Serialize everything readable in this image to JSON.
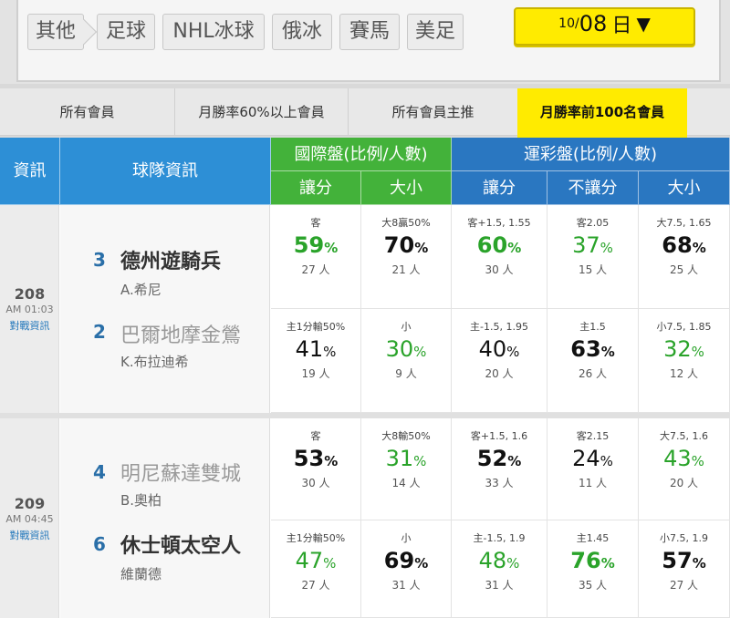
{
  "categories": [
    "其他",
    "足球",
    "NHL冰球",
    "俄冰",
    "賽馬",
    "美足"
  ],
  "date": {
    "month": "10",
    "slash": "/",
    "day": "08",
    "weekday": "日",
    "arrow": "▼"
  },
  "filters": [
    "所有會員",
    "月勝率60%以上會員",
    "所有會員主推",
    "月勝率前100名會員"
  ],
  "header": {
    "info": "資訊",
    "team_info": "球隊資訊",
    "intl": "國際盤(比例/人數)",
    "sports": "運彩盤(比例/人數)",
    "spread": "讓分",
    "ou": "大小",
    "s_spread": "讓分",
    "s_nospread": "不讓分",
    "s_ou": "大小"
  },
  "games": [
    {
      "no": "208",
      "time": "AM 01:03",
      "link": "對戰資訊",
      "teams": [
        {
          "rank": "3",
          "name": "德州遊騎兵",
          "pitcher": "A.希尼",
          "cells": [
            {
              "label": "客",
              "pct": "59",
              "green": true,
              "bold": true,
              "count": "27 人"
            },
            {
              "label": "大8贏50%",
              "pct": "70",
              "green": false,
              "bold": true,
              "count": "21 人"
            },
            {
              "label": "客+1.5, 1.55",
              "pct": "60",
              "green": true,
              "bold": true,
              "count": "30 人"
            },
            {
              "label": "客2.05",
              "pct": "37",
              "green": true,
              "bold": false,
              "count": "15 人"
            },
            {
              "label": "大7.5, 1.65",
              "pct": "68",
              "green": false,
              "bold": true,
              "count": "25 人"
            }
          ]
        },
        {
          "rank": "2",
          "name": "巴爾地摩金鶯",
          "pitcher": "K.布拉迪希",
          "cells": [
            {
              "label": "主1分輸50%",
              "pct": "41",
              "green": false,
              "bold": false,
              "count": "19 人"
            },
            {
              "label": "小",
              "pct": "30",
              "green": true,
              "bold": false,
              "count": "9 人"
            },
            {
              "label": "主-1.5, 1.95",
              "pct": "40",
              "green": false,
              "bold": false,
              "count": "20 人"
            },
            {
              "label": "主1.5",
              "pct": "63",
              "green": false,
              "bold": true,
              "count": "26 人"
            },
            {
              "label": "小7.5, 1.85",
              "pct": "32",
              "green": true,
              "bold": false,
              "count": "12 人"
            }
          ]
        }
      ]
    },
    {
      "no": "209",
      "time": "AM 04:45",
      "link": "對戰資訊",
      "teams": [
        {
          "rank": "4",
          "name": "明尼蘇達雙城",
          "pitcher": "B.奧柏",
          "cells": [
            {
              "label": "客",
              "pct": "53",
              "green": false,
              "bold": true,
              "count": "30 人"
            },
            {
              "label": "大8輸50%",
              "pct": "31",
              "green": true,
              "bold": false,
              "count": "14 人"
            },
            {
              "label": "客+1.5, 1.6",
              "pct": "52",
              "green": false,
              "bold": true,
              "count": "33 人"
            },
            {
              "label": "客2.15",
              "pct": "24",
              "green": false,
              "bold": false,
              "count": "11 人"
            },
            {
              "label": "大7.5, 1.6",
              "pct": "43",
              "green": true,
              "bold": false,
              "count": "20 人"
            }
          ]
        },
        {
          "rank": "6",
          "name": "休士頓太空人",
          "pitcher": "維蘭德",
          "cells": [
            {
              "label": "主1分輸50%",
              "pct": "47",
              "green": true,
              "bold": false,
              "count": "27 人"
            },
            {
              "label": "小",
              "pct": "69",
              "green": false,
              "bold": true,
              "count": "31 人"
            },
            {
              "label": "主-1.5, 1.9",
              "pct": "48",
              "green": true,
              "bold": false,
              "count": "31 人"
            },
            {
              "label": "主1.45",
              "pct": "76",
              "green": true,
              "bold": true,
              "count": "35 人"
            },
            {
              "label": "小7.5, 1.9",
              "pct": "57",
              "green": false,
              "bold": true,
              "count": "27 人"
            }
          ]
        }
      ]
    }
  ],
  "pct_unit": "%"
}
